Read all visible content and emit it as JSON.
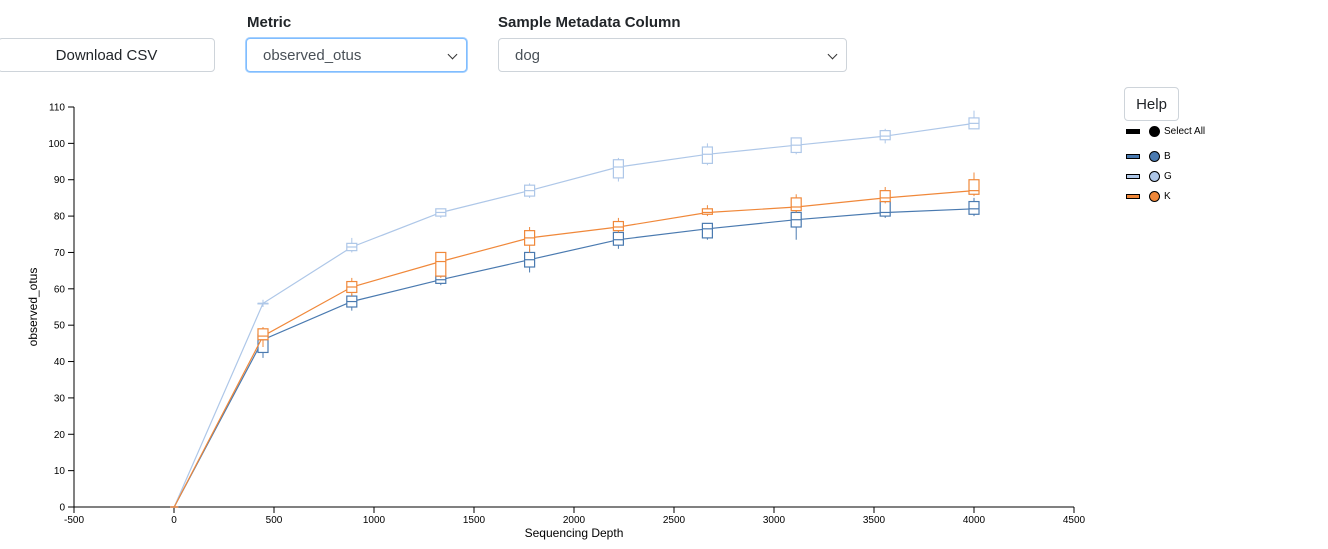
{
  "controls": {
    "download_label": "Download CSV",
    "metric_label": "Metric",
    "metric_value": "observed_otus",
    "column_label": "Sample Metadata Column",
    "column_value": "dog",
    "help_label": "Help"
  },
  "legend": {
    "select_all": "Select All",
    "items": [
      {
        "label": "B",
        "color": "#4a7ab0"
      },
      {
        "label": "G",
        "color": "#aec7e8"
      },
      {
        "label": "K",
        "color": "#f0883a"
      }
    ]
  },
  "chart_data": {
    "type": "line",
    "xlabel": "Sequencing Depth",
    "ylabel": "observed_otus",
    "xlim": [
      -500,
      4500
    ],
    "ylim": [
      0,
      110
    ],
    "xticks": [
      -500,
      0,
      500,
      1000,
      1500,
      2000,
      2500,
      3000,
      3500,
      4000,
      4500
    ],
    "yticks": [
      0,
      10,
      20,
      30,
      40,
      50,
      60,
      70,
      80,
      90,
      100,
      110
    ],
    "x": [
      1,
      445,
      889,
      1334,
      1778,
      2222,
      2667,
      3111,
      3556,
      4000
    ],
    "series": [
      {
        "name": "B",
        "color": "#4a7ab0",
        "median": [
          0,
          46,
          56.5,
          62.5,
          68,
          73.5,
          76.5,
          79,
          81,
          82
        ],
        "box": [
          [
            0,
            0
          ],
          [
            42.5,
            47.5
          ],
          [
            55,
            58
          ],
          [
            61.5,
            63.5
          ],
          [
            66,
            70
          ],
          [
            72,
            75.5
          ],
          [
            74,
            78
          ],
          [
            77,
            81
          ],
          [
            80,
            84
          ],
          [
            80.5,
            84
          ]
        ],
        "whisker": [
          [
            0,
            0
          ],
          [
            41,
            48
          ],
          [
            54,
            58.5
          ],
          [
            61,
            64
          ],
          [
            64.5,
            71
          ],
          [
            71,
            76
          ],
          [
            73.5,
            78
          ],
          [
            73.5,
            82
          ],
          [
            79.5,
            85
          ],
          [
            80,
            85
          ]
        ]
      },
      {
        "name": "G",
        "color": "#aec7e8",
        "median": [
          0,
          56,
          71.5,
          81,
          87,
          93.5,
          97,
          99.5,
          102,
          105.5
        ],
        "box": [
          [
            0,
            0
          ],
          [
            56,
            56
          ],
          [
            70.5,
            72.5
          ],
          [
            80,
            82
          ],
          [
            85.5,
            88.5
          ],
          [
            90.5,
            95.5
          ],
          [
            94.5,
            99
          ],
          [
            97.5,
            101.5
          ],
          [
            101,
            103.5
          ],
          [
            104,
            107
          ]
        ],
        "whisker": [
          [
            0,
            0
          ],
          [
            55,
            57
          ],
          [
            70,
            74
          ],
          [
            79.5,
            82
          ],
          [
            85,
            89
          ],
          [
            89.5,
            96
          ],
          [
            94,
            100
          ],
          [
            97,
            101.5
          ],
          [
            100,
            104
          ],
          [
            104,
            109
          ]
        ]
      },
      {
        "name": "K",
        "color": "#f0883a",
        "median": [
          0,
          47,
          60.5,
          67.5,
          74,
          77,
          81,
          82.5,
          85,
          87
        ],
        "box": [
          [
            0,
            0
          ],
          [
            46,
            49
          ],
          [
            59,
            62
          ],
          [
            63.5,
            70
          ],
          [
            72,
            76
          ],
          [
            76,
            78.5
          ],
          [
            80.5,
            82
          ],
          [
            81.5,
            85
          ],
          [
            84,
            87
          ],
          [
            86,
            90
          ]
        ],
        "whisker": [
          [
            0,
            0
          ],
          [
            44,
            49.5
          ],
          [
            58,
            63
          ],
          [
            63,
            70
          ],
          [
            70,
            77
          ],
          [
            75.5,
            79.5
          ],
          [
            80,
            83
          ],
          [
            81,
            86
          ],
          [
            83.5,
            88
          ],
          [
            85.5,
            92
          ]
        ]
      }
    ]
  }
}
